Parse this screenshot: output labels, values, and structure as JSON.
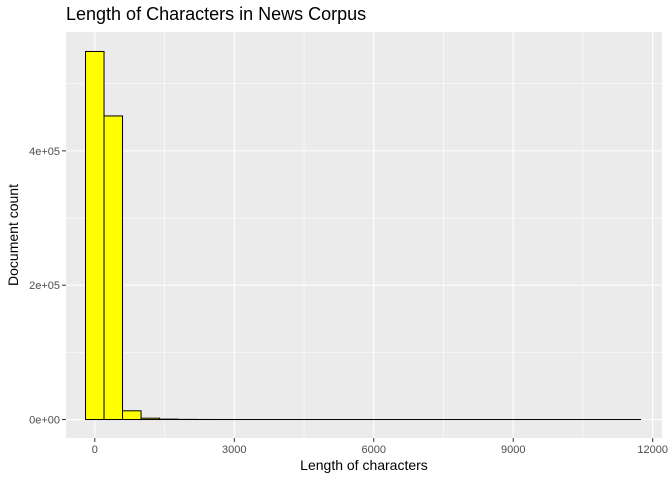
{
  "chart_data": {
    "type": "bar",
    "subtype": "histogram",
    "title": "Length of Characters in News Corpus",
    "xlabel": "Length of characters",
    "ylabel": "Document count",
    "xlim": [
      -620,
      12200
    ],
    "ylim": [
      -27500,
      577000
    ],
    "x_ticks": [
      0,
      3000,
      6000,
      9000,
      12000
    ],
    "x_tick_labels": [
      "0",
      "3000",
      "6000",
      "9000",
      "12000"
    ],
    "y_ticks": [
      0,
      200000,
      400000
    ],
    "y_tick_labels": [
      "0e+00",
      "2e+05",
      "4e+05"
    ],
    "bins": {
      "start": -200,
      "width": 398,
      "counts": [
        548000,
        452000,
        13000,
        2000,
        600,
        200,
        100,
        50,
        25,
        15,
        10,
        8,
        6,
        5,
        4,
        3,
        3,
        2,
        2,
        2,
        2,
        1,
        1,
        1,
        1,
        1,
        1,
        1,
        1,
        1
      ]
    },
    "fill_color": "#ffff00",
    "stroke_color": "#000000",
    "panel_background": "#ebebeb",
    "grid": true,
    "legend": "none"
  }
}
